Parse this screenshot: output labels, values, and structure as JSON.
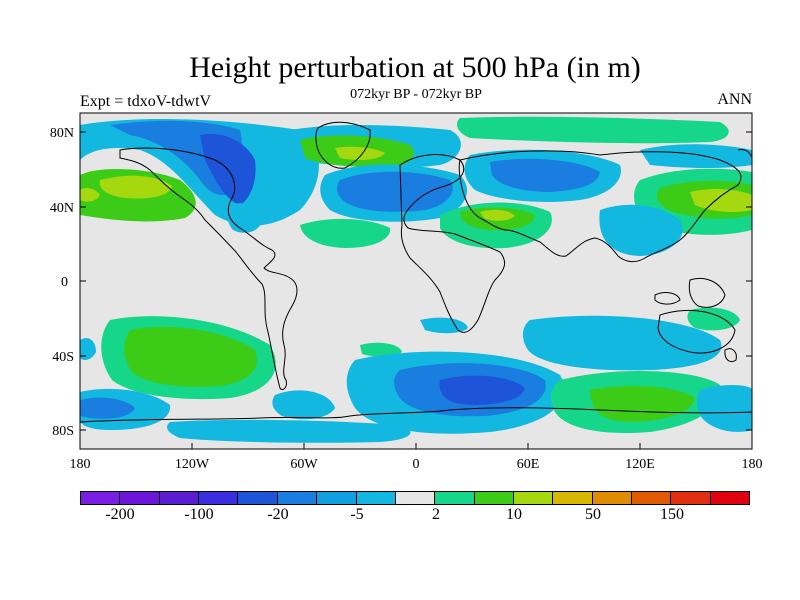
{
  "header": {
    "title": "Height perturbation at 500 hPa (in m)",
    "subtitle": "072kyr BP - 072kyr BP",
    "left_label": "Expt = tdxoV-tdwtV",
    "right_label": "ANN"
  },
  "map": {
    "projection": "cylindrical equidistant",
    "background_color": "#e6e6e6",
    "lon_range": [
      -180,
      180
    ],
    "lat_range": [
      -90,
      90
    ],
    "lat_tick_labels": [
      "80N",
      "40N",
      "0",
      "40S",
      "80S"
    ],
    "lon_tick_labels": [
      "180",
      "120W",
      "60W",
      "0",
      "60E",
      "120E",
      "180"
    ]
  },
  "colorbar": {
    "colors": [
      "#7a1ee6",
      "#6a17d9",
      "#5a1ed0",
      "#3a2ee0",
      "#1e55d8",
      "#1a7ee0",
      "#0ea0e0",
      "#12b8e0",
      "#e6e6e6",
      "#16d68a",
      "#3ccc18",
      "#a6d810",
      "#d6b800",
      "#e08c00",
      "#e05a00",
      "#e02e10",
      "#e00010"
    ],
    "labels": [
      "-200",
      "-100",
      "-20",
      "-5",
      "2",
      "10",
      "50",
      "150"
    ]
  }
}
